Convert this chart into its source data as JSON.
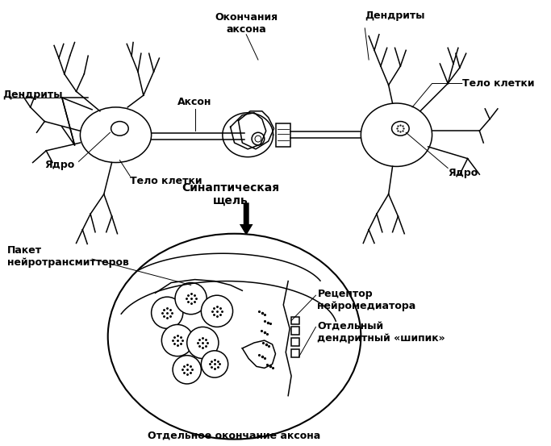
{
  "bg_color": "#ffffff",
  "line_color": "#000000",
  "labels": {
    "dendrity_left": "Дендриты",
    "yadro_left": "Ядро",
    "telo_kletki_left": "Тело клетки",
    "akson": "Аксон",
    "okonchania_aksona": "Окончания\nаксона",
    "dendrity_right": "Дендриты",
    "telo_kletki_right": "Тело клетки",
    "yadro_right": "Ядро",
    "sinapticheskaya_shel": "Синаптическая\nщель",
    "paket_neyrotransmitterov": "Пакет\nнейротрансмиттеров",
    "receptor_neyromediatora": "Рецептор\nнейромедиатора",
    "otdelny_dendritny": "Отдельный\nдендритный «шипик»",
    "otdelnoe_okonchanie": "Отдельное окончание аксона"
  },
  "fontsize": 9
}
